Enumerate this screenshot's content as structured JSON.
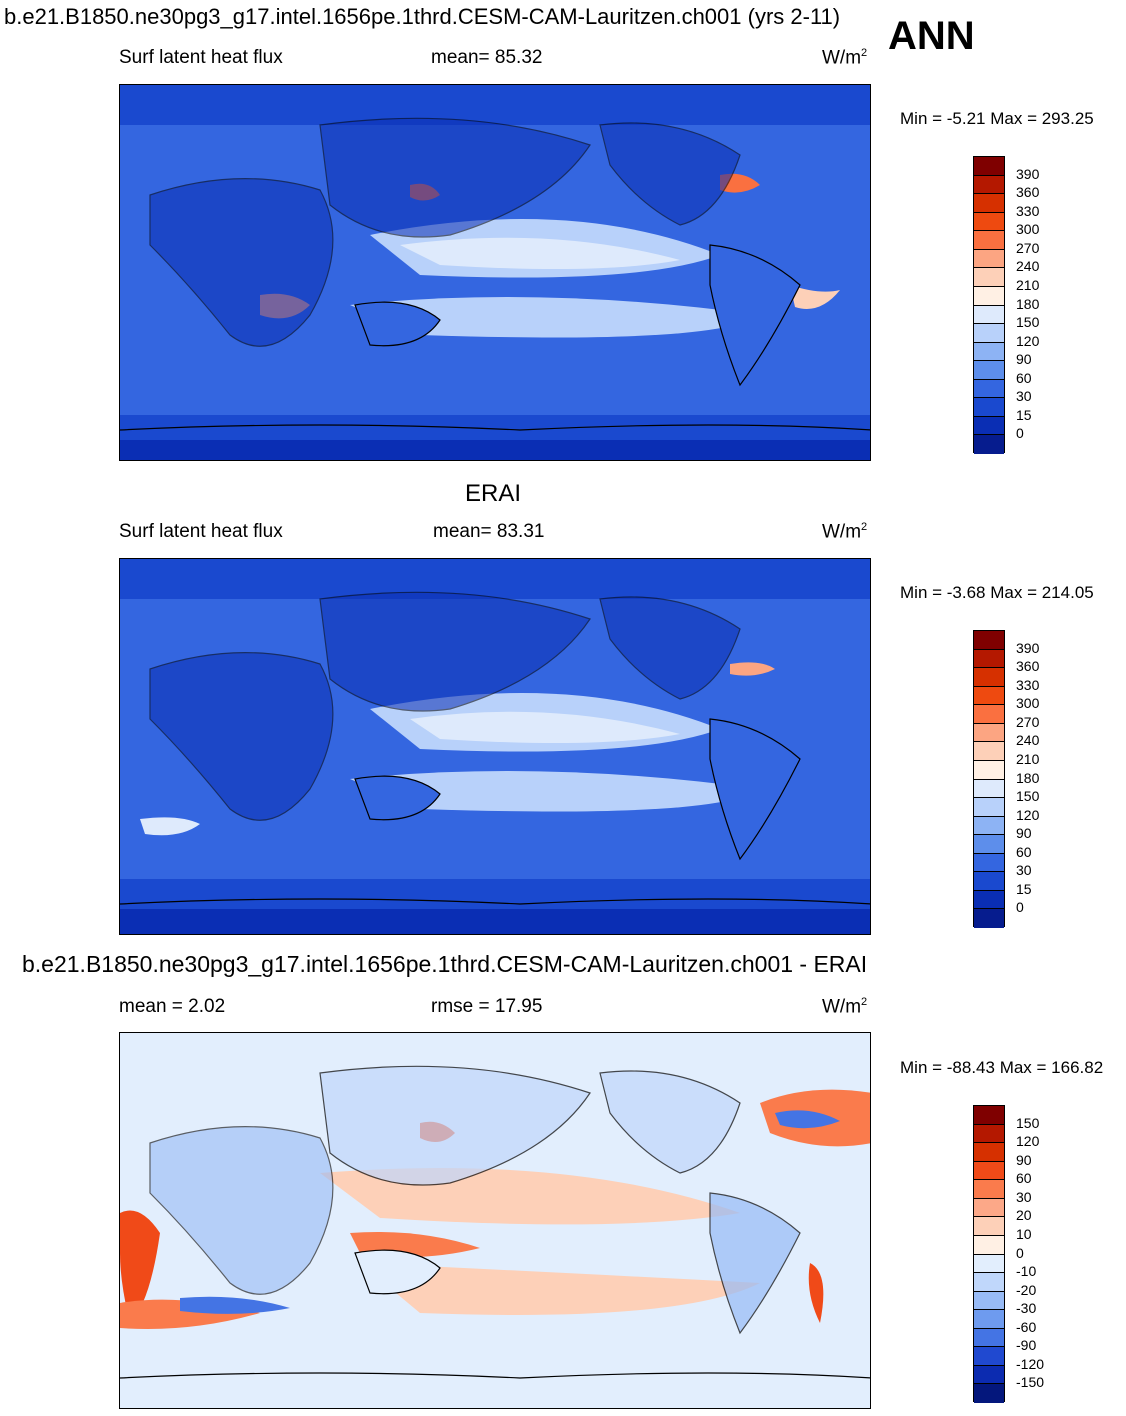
{
  "header": {
    "title": "b.e21.B1850.ne30pg3_g17.intel.1656pe.1thrd.CESM-CAM-Lauritzen.ch001 (yrs 2-11)",
    "season": "ANN"
  },
  "panels": [
    {
      "variable": "Surf latent heat flux",
      "stat": "mean=  85.32",
      "units": "W/m",
      "units_sup": "2",
      "minmax": "Min =  -5.21 Max = 293.25",
      "colorbar_labels": [
        "390",
        "360",
        "330",
        "300",
        "270",
        "240",
        "210",
        "180",
        "150",
        "120",
        "90",
        "60",
        "30",
        "15",
        "0"
      ],
      "colors": [
        "#7f0000",
        "#b41800",
        "#d63000",
        "#ee4a10",
        "#fa7040",
        "#fca582",
        "#fdd0b8",
        "#fff0e4",
        "#deeafc",
        "#b8d1fa",
        "#8db3f4",
        "#5d8eeb",
        "#3466e0",
        "#1a49cf",
        "#0a2eb4",
        "#061c8e"
      ]
    },
    {
      "section_title": "ERAI",
      "variable": "Surf latent heat flux",
      "stat": "mean=  83.31",
      "units": "W/m",
      "units_sup": "2",
      "minmax": "Min =  -3.68 Max = 214.05",
      "colorbar_labels": [
        "390",
        "360",
        "330",
        "300",
        "270",
        "240",
        "210",
        "180",
        "150",
        "120",
        "90",
        "60",
        "30",
        "15",
        "0"
      ],
      "colors": [
        "#7f0000",
        "#b41800",
        "#d63000",
        "#ee4a10",
        "#fa7040",
        "#fca582",
        "#fdd0b8",
        "#fff0e4",
        "#deeafc",
        "#b8d1fa",
        "#8db3f4",
        "#5d8eeb",
        "#3466e0",
        "#1a49cf",
        "#0a2eb4",
        "#061c8e"
      ]
    },
    {
      "section_title": "b.e21.B1850.ne30pg3_g17.intel.1656pe.1thrd.CESM-CAM-Lauritzen.ch001 - ERAI",
      "stat": "mean =   2.02",
      "stat2": "rmse =  17.95",
      "units": "W/m",
      "units_sup": "2",
      "minmax": "Min = -88.43 Max = 166.82",
      "colorbar_labels": [
        "150",
        "120",
        "90",
        "60",
        "30",
        "20",
        "10",
        "0",
        "-10",
        "-20",
        "-30",
        "-60",
        "-90",
        "-120",
        "-150"
      ],
      "colors": [
        "#7f0000",
        "#b41800",
        "#d63000",
        "#f04a18",
        "#fa7b4c",
        "#fca888",
        "#fdd0b8",
        "#fff0e4",
        "#e2eefd",
        "#c0d7fb",
        "#98bbf6",
        "#6e9bef",
        "#4474e4",
        "#2049d0",
        "#0c2bb0",
        "#04177c"
      ]
    }
  ]
}
